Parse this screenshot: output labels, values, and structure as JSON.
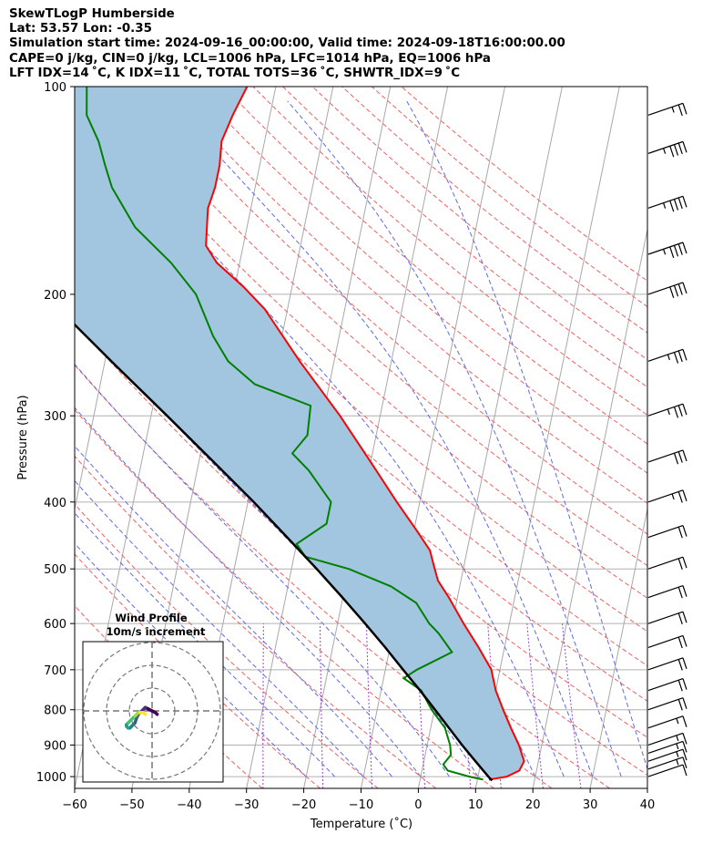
{
  "header": {
    "line1": "SkewTLogP Humberside",
    "line2": "Lat: 53.57   Lon: -0.35",
    "line3": "Simulation start time: 2024-09-16_00:00:00, Valid time: 2024-09-18T16:00:00.00",
    "line4": "CAPE=0 j/kg, CIN=0 j/kg, LCL=1006 hPa, LFC=1014 hPa, EQ=1006 hPa",
    "line5": "LFT IDX=14 ˚C, K IDX=11 ˚C, TOTAL TOTS=36 ˚C, SHWTR_IDX=9 ˚C"
  },
  "chart_data": {
    "type": "skewt",
    "xlabel": "Temperature (˚C)",
    "ylabel": "Pressure (hPa)",
    "xlim": [
      -60,
      40
    ],
    "ylim": [
      1040,
      100
    ],
    "x_ticks": [
      -60,
      -50,
      -40,
      -30,
      -20,
      -10,
      0,
      10,
      20,
      30,
      40
    ],
    "x_tick_labels": [
      "−60",
      "−50",
      "−40",
      "−30",
      "−20",
      "−10",
      "0",
      "10",
      "20",
      "30",
      "40"
    ],
    "y_ticks": [
      1000,
      900,
      800,
      700,
      600,
      500,
      400,
      300,
      200,
      100
    ],
    "y_tick_labels": [
      "1000",
      "900",
      "800",
      "700",
      "600",
      "500",
      "400",
      "300",
      "200",
      "100"
    ],
    "temperature_color": "#ff0000",
    "dewpoint_color": "#008000",
    "parcel_color": "#000000",
    "cape_fill_color": "#a3c6e0",
    "temperature": [
      [
        1010,
        12.0
      ],
      [
        1000,
        15.0
      ],
      [
        980,
        17.0
      ],
      [
        950,
        17.5
      ],
      [
        900,
        16.0
      ],
      [
        850,
        14.0
      ],
      [
        800,
        12.0
      ],
      [
        750,
        10.0
      ],
      [
        700,
        8.5
      ],
      [
        650,
        5.5
      ],
      [
        600,
        2.0
      ],
      [
        550,
        -1.5
      ],
      [
        520,
        -4.0
      ],
      [
        500,
        -5.0
      ],
      [
        470,
        -6.5
      ],
      [
        440,
        -9.5
      ],
      [
        400,
        -14.0
      ],
      [
        350,
        -20.0
      ],
      [
        300,
        -27.0
      ],
      [
        250,
        -36.0
      ],
      [
        210,
        -44.0
      ],
      [
        195,
        -48.5
      ],
      [
        180,
        -54.0
      ],
      [
        170,
        -56.5
      ],
      [
        160,
        -57.0
      ],
      [
        150,
        -57.5
      ],
      [
        140,
        -57.0
      ],
      [
        130,
        -57.0
      ],
      [
        120,
        -57.5
      ],
      [
        110,
        -56.5
      ],
      [
        100,
        -55.0
      ]
    ],
    "dewpoint": [
      [
        1010,
        11.0
      ],
      [
        1000,
        8.5
      ],
      [
        980,
        4.5
      ],
      [
        960,
        3.5
      ],
      [
        930,
        4.5
      ],
      [
        900,
        4.0
      ],
      [
        850,
        2.5
      ],
      [
        800,
        -0.5
      ],
      [
        750,
        -3.0
      ],
      [
        720,
        -6.5
      ],
      [
        700,
        -4.5
      ],
      [
        660,
        1.0
      ],
      [
        620,
        -2.0
      ],
      [
        600,
        -4.0
      ],
      [
        560,
        -7.0
      ],
      [
        530,
        -12.0
      ],
      [
        500,
        -20.0
      ],
      [
        480,
        -28.0
      ],
      [
        460,
        -30.0
      ],
      [
        430,
        -25.5
      ],
      [
        400,
        -25.5
      ],
      [
        360,
        -30.5
      ],
      [
        340,
        -34.0
      ],
      [
        320,
        -32.0
      ],
      [
        290,
        -32.5
      ],
      [
        270,
        -43.0
      ],
      [
        250,
        -48.5
      ],
      [
        230,
        -52.0
      ],
      [
        200,
        -56.5
      ],
      [
        180,
        -62.0
      ],
      [
        160,
        -69.5
      ],
      [
        140,
        -75.0
      ],
      [
        130,
        -77.0
      ],
      [
        120,
        -79.0
      ],
      [
        110,
        -82.0
      ],
      [
        100,
        -83.0
      ]
    ],
    "parcel": [
      [
        1013,
        12.6
      ],
      [
        1000,
        11.8
      ],
      [
        950,
        9.0
      ],
      [
        900,
        6.1
      ],
      [
        850,
        3.2
      ],
      [
        800,
        0.1
      ],
      [
        750,
        -3.2
      ],
      [
        700,
        -6.9
      ],
      [
        650,
        -10.8
      ],
      [
        600,
        -15.2
      ],
      [
        550,
        -20.1
      ],
      [
        500,
        -25.6
      ],
      [
        450,
        -31.9
      ],
      [
        400,
        -39.0
      ],
      [
        350,
        -47.4
      ],
      [
        300,
        -57.2
      ],
      [
        250,
        -68.9
      ],
      [
        200,
        -83.0
      ],
      [
        150,
        -100.6
      ],
      [
        100,
        -124.0
      ]
    ],
    "wind_barbs": [
      {
        "p": 1000,
        "speed_kt": 10
      },
      {
        "p": 975,
        "speed_kt": 15
      },
      {
        "p": 950,
        "speed_kt": 15
      },
      {
        "p": 925,
        "speed_kt": 15
      },
      {
        "p": 900,
        "speed_kt": 15
      },
      {
        "p": 850,
        "speed_kt": 15
      },
      {
        "p": 800,
        "speed_kt": 20
      },
      {
        "p": 750,
        "speed_kt": 20
      },
      {
        "p": 700,
        "speed_kt": 20
      },
      {
        "p": 650,
        "speed_kt": 20
      },
      {
        "p": 600,
        "speed_kt": 20
      },
      {
        "p": 550,
        "speed_kt": 20
      },
      {
        "p": 500,
        "speed_kt": 20
      },
      {
        "p": 450,
        "speed_kt": 20
      },
      {
        "p": 400,
        "speed_kt": 25
      },
      {
        "p": 350,
        "speed_kt": 30
      },
      {
        "p": 300,
        "speed_kt": 35
      },
      {
        "p": 250,
        "speed_kt": 35
      },
      {
        "p": 200,
        "speed_kt": 40
      },
      {
        "p": 175,
        "speed_kt": 45
      },
      {
        "p": 150,
        "speed_kt": 45
      },
      {
        "p": 125,
        "speed_kt": 45
      },
      {
        "p": 110,
        "speed_kt": 25
      }
    ],
    "hodograph": {
      "title": "Wind Profile",
      "subtitle": "10m/s increment",
      "ring_step_ms": 10,
      "points": [
        [
          3,
          -2
        ],
        [
          2,
          -1
        ],
        [
          0,
          0
        ],
        [
          -2,
          1
        ],
        [
          -4,
          2
        ],
        [
          -5,
          1
        ],
        [
          -6,
          0
        ],
        [
          -7,
          -1
        ],
        [
          -8,
          -2
        ],
        [
          -9,
          -4
        ],
        [
          -10,
          -7
        ],
        [
          -11,
          -8
        ],
        [
          -12,
          -9
        ],
        [
          -13,
          -10
        ],
        [
          -14,
          -10
        ],
        [
          -15,
          -9
        ],
        [
          -15,
          -8
        ],
        [
          -14,
          -7
        ],
        [
          -13,
          -6
        ],
        [
          -12,
          -5
        ],
        [
          -11,
          -4
        ],
        [
          -10,
          -3
        ],
        [
          -9,
          -2
        ],
        [
          -8,
          -1
        ],
        [
          -7,
          -1
        ],
        [
          -6,
          -1
        ],
        [
          -5,
          -1
        ],
        [
          -4,
          -2
        ]
      ]
    }
  }
}
